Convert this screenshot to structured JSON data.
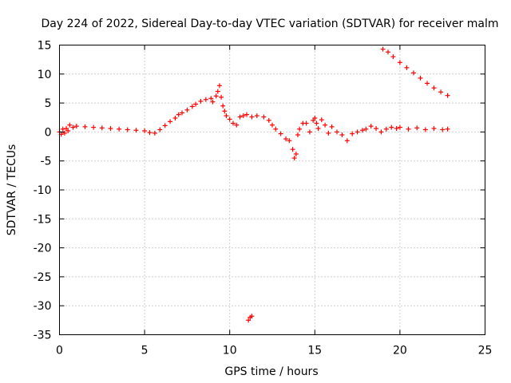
{
  "chart_data": {
    "type": "scatter",
    "title": "Day 224 of 2022, Sidereal Day-to-day VTEC variation (SDTVAR) for receiver malm",
    "xlabel": "GPS time / hours",
    "ylabel": "SDTVAR / TECUs",
    "xlim": [
      0,
      25
    ],
    "ylim": [
      -35,
      15
    ],
    "grid": true,
    "marker": "plus",
    "color": "#ff0000",
    "xticks": [
      0,
      5,
      10,
      15,
      20,
      25
    ],
    "yticks": [
      15,
      10,
      5,
      0,
      -5,
      -10,
      -15,
      -20,
      -25,
      -30,
      -35
    ],
    "series": [
      {
        "name": "SDTVAR",
        "x": [
          0.0,
          0.1,
          0.2,
          0.3,
          0.4,
          0.5,
          0.6,
          0.8,
          1.0,
          1.5,
          2.0,
          2.5,
          3.0,
          3.5,
          4.0,
          4.5,
          5.0,
          5.3,
          5.6,
          5.9,
          6.2,
          6.5,
          6.8,
          7.0,
          7.2,
          7.5,
          7.8,
          8.0,
          8.3,
          8.6,
          8.9,
          9.0,
          9.2,
          9.3,
          9.4,
          9.5,
          9.6,
          9.7,
          9.8,
          10.0,
          10.2,
          10.4,
          10.6,
          10.8,
          11.0,
          11.3,
          11.6,
          12.0,
          12.3,
          12.5,
          12.7,
          13.0,
          13.3,
          13.5,
          13.7,
          13.8,
          13.9,
          14.0,
          14.1,
          14.3,
          14.5,
          14.7,
          14.9,
          15.0,
          15.1,
          15.2,
          15.4,
          15.6,
          15.8,
          16.0,
          16.3,
          16.6,
          16.9,
          17.2,
          17.5,
          17.8,
          18.0,
          18.3,
          18.6,
          18.9,
          19.2,
          19.5,
          19.8,
          20.0,
          20.5,
          21.0,
          21.5,
          22.0,
          22.5,
          22.8,
          19.0,
          19.3,
          19.6,
          20.0,
          20.4,
          20.8,
          21.2,
          21.6,
          22.0,
          22.4,
          22.8,
          11.1,
          11.2,
          11.3
        ],
        "y": [
          0.0,
          -0.4,
          0.5,
          -0.2,
          0.6,
          0.2,
          1.2,
          0.8,
          1.0,
          0.9,
          0.8,
          0.7,
          0.6,
          0.5,
          0.4,
          0.3,
          0.2,
          -0.1,
          -0.2,
          0.4,
          1.1,
          1.8,
          2.4,
          3.0,
          3.3,
          3.8,
          4.4,
          4.8,
          5.3,
          5.6,
          5.8,
          5.2,
          6.2,
          7.0,
          8.0,
          6.0,
          4.5,
          3.6,
          2.8,
          2.2,
          1.5,
          1.2,
          2.6,
          2.8,
          3.0,
          2.6,
          2.8,
          2.6,
          2.0,
          1.2,
          0.5,
          -0.3,
          -1.2,
          -1.5,
          -3.0,
          -4.5,
          -3.8,
          -0.5,
          0.5,
          1.5,
          1.5,
          0.0,
          2.0,
          2.4,
          1.5,
          0.6,
          2.1,
          1.2,
          -0.2,
          0.9,
          0.0,
          -0.5,
          -1.5,
          -0.3,
          0.0,
          0.3,
          0.5,
          1.0,
          0.6,
          0.0,
          0.5,
          0.8,
          0.6,
          0.8,
          0.5,
          0.7,
          0.4,
          0.6,
          0.4,
          0.5,
          14.3,
          13.8,
          13.0,
          12.0,
          11.1,
          10.2,
          9.3,
          8.4,
          7.6,
          6.9,
          6.3,
          -32.5,
          -32.0,
          -31.8
        ]
      }
    ]
  }
}
